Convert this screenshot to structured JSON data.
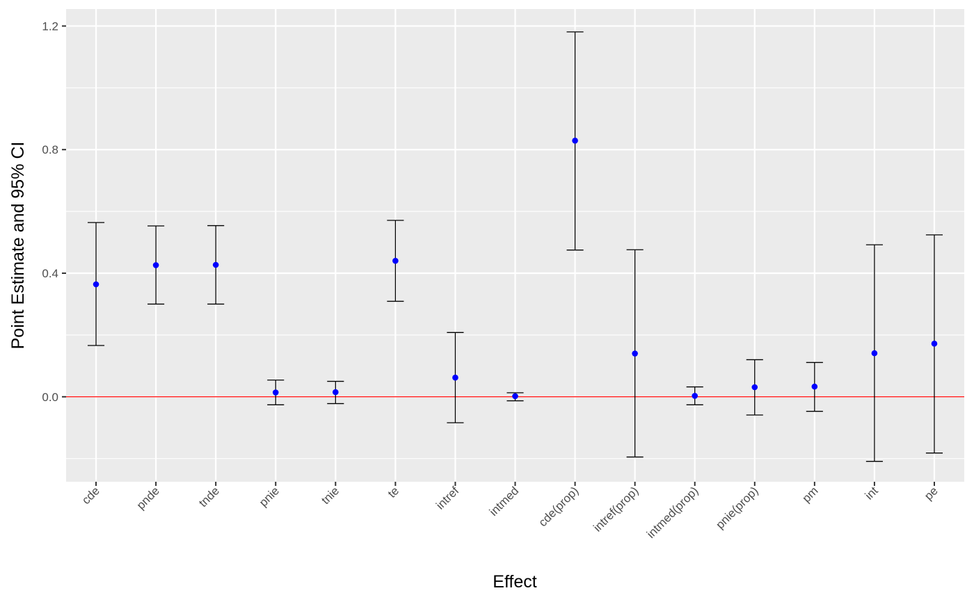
{
  "chart_data": {
    "type": "errorbar",
    "title": "",
    "xlabel": "Effect",
    "ylabel": "Point Estimate and 95% CI",
    "ylim": [
      -0.275,
      1.255
    ],
    "yticks": [
      0.0,
      0.4,
      0.8,
      1.2
    ],
    "ytick_labels": [
      "0.0",
      "0.4",
      "0.8",
      "1.2"
    ],
    "reference_line": {
      "y": 0.0,
      "color": "#ff0000"
    },
    "grid": true,
    "legend": "none",
    "categories": [
      "cde",
      "pnde",
      "tnde",
      "pnie",
      "tnie",
      "te",
      "intref",
      "intmed",
      "cde(prop)",
      "intref(prop)",
      "intmed(prop)",
      "pnie(prop)",
      "pm",
      "int",
      "pe"
    ],
    "estimates": [
      0.364,
      0.426,
      0.427,
      0.014,
      0.015,
      0.44,
      0.062,
      0.002,
      0.829,
      0.14,
      0.003,
      0.031,
      0.033,
      0.141,
      0.172
    ],
    "lower": [
      0.166,
      0.3,
      0.3,
      -0.026,
      -0.022,
      0.309,
      -0.084,
      -0.013,
      0.475,
      -0.195,
      -0.026,
      -0.059,
      -0.047,
      -0.209,
      -0.182
    ],
    "upper": [
      0.564,
      0.553,
      0.554,
      0.054,
      0.05,
      0.571,
      0.208,
      0.013,
      1.181,
      0.476,
      0.032,
      0.12,
      0.111,
      0.492,
      0.524
    ],
    "colors": {
      "point": "#0000ff",
      "errorbar": "#000000",
      "panel_background": "#ebebeb",
      "gridline": "#ffffff",
      "reference_line": "#ff0000"
    }
  }
}
